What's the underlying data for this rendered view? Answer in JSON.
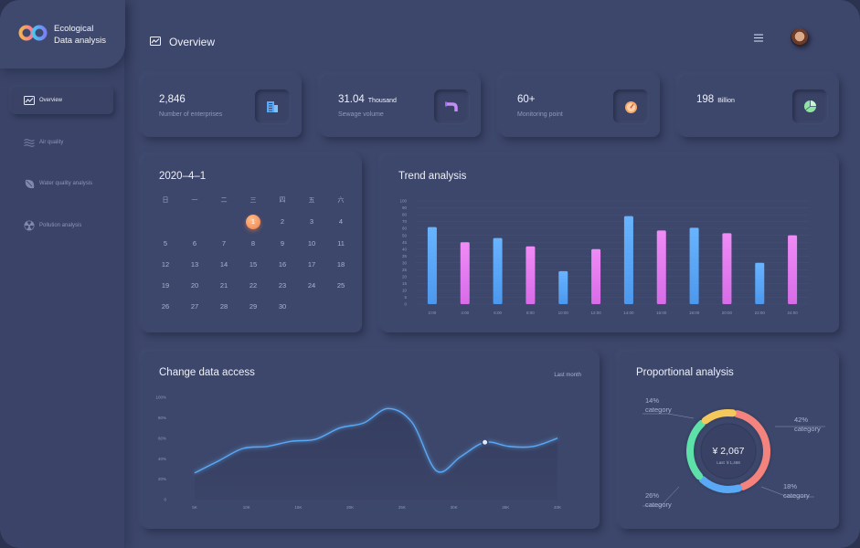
{
  "brand": {
    "line1": "Ecological",
    "line2": "Data analysis"
  },
  "header": {
    "title": "Overview"
  },
  "nav": [
    {
      "label": "Overview",
      "icon": "chart-icon",
      "active": true
    },
    {
      "label": "Air quality",
      "icon": "wind-icon",
      "active": false
    },
    {
      "label": "Water quality analysis",
      "icon": "leaf-icon",
      "active": false
    },
    {
      "label": "Pollution analysis",
      "icon": "radiation-icon",
      "active": false
    }
  ],
  "kpis": [
    {
      "value": "2,846",
      "unit": "",
      "label": "Number of enterprises",
      "icon": "building-icon"
    },
    {
      "value": "31.04",
      "unit": "Thousand",
      "label": "Sewage volume",
      "icon": "pipe-icon"
    },
    {
      "value": "60+",
      "unit": "",
      "label": "Monitoring point",
      "icon": "gauge-icon"
    },
    {
      "value": "198",
      "unit": "Billion",
      "label": "",
      "icon": "pie-icon"
    }
  ],
  "calendar": {
    "title": "2020–4–1",
    "weekdays": [
      "日",
      "一",
      "二",
      "三",
      "四",
      "五",
      "六"
    ],
    "weeks": [
      [
        "",
        "",
        "",
        "1",
        "2",
        "3",
        "4"
      ],
      [
        "5",
        "6",
        "7",
        "8",
        "9",
        "10",
        "11"
      ],
      [
        "12",
        "13",
        "14",
        "15",
        "16",
        "17",
        "18"
      ],
      [
        "19",
        "20",
        "21",
        "22",
        "23",
        "24",
        "25"
      ],
      [
        "26",
        "27",
        "28",
        "29",
        "30",
        "",
        ""
      ]
    ],
    "selected": "1"
  },
  "trend": {
    "title": "Trend analysis",
    "chart_data": {
      "type": "bar",
      "categories": [
        "2:00",
        "4:00",
        "6:00",
        "8:00",
        "10:00",
        "12:00",
        "14:00",
        "16:00",
        "18:00",
        "20:00",
        "22:00",
        "24:00"
      ],
      "values": [
        62,
        45,
        48,
        42,
        24,
        40,
        78,
        57,
        61,
        53,
        30,
        50
      ],
      "ylim": [
        0,
        100
      ],
      "yticks": [
        0,
        5,
        10,
        15,
        20,
        25,
        30,
        35,
        40,
        45,
        50,
        60,
        70,
        80,
        90,
        100
      ],
      "colors": {
        "blue": "#5aa9f7",
        "pink": "#e77ef0"
      }
    }
  },
  "access": {
    "title": "Change data access",
    "period": "Last month",
    "chart_data": {
      "type": "area",
      "x": [
        "5K",
        "10K",
        "15K",
        "20K",
        "25K",
        "30K",
        "35K",
        "40K"
      ],
      "yticks": [
        "0",
        "20%",
        "40%",
        "60%",
        "80%",
        "100%"
      ],
      "ylim": [
        0,
        100
      ],
      "points": [
        [
          0.0,
          26
        ],
        [
          0.5,
          38
        ],
        [
          1.0,
          50
        ],
        [
          1.5,
          52
        ],
        [
          2.0,
          57
        ],
        [
          2.5,
          59
        ],
        [
          3.0,
          70
        ],
        [
          3.5,
          75
        ],
        [
          4.0,
          89
        ],
        [
          4.5,
          75
        ],
        [
          5.0,
          28
        ],
        [
          5.5,
          42
        ],
        [
          6.0,
          56
        ],
        [
          6.5,
          52
        ],
        [
          7.0,
          52
        ],
        [
          7.5,
          60
        ]
      ],
      "marker_x": 6.0
    }
  },
  "proportion": {
    "title": "Proportional analysis",
    "center_value": "¥ 2,067",
    "center_sub": "Last ￥1,468",
    "chart_data": {
      "type": "pie",
      "slices": [
        {
          "label": "42% category",
          "pct": "42%",
          "name": "category",
          "value": 42,
          "color": "#f4837e"
        },
        {
          "label": "18% category",
          "pct": "18%",
          "name": "category",
          "value": 18,
          "color": "#5aa9f7"
        },
        {
          "label": "26% category",
          "pct": "26%",
          "name": "category",
          "value": 26,
          "color": "#5ee1a8"
        },
        {
          "label": "14% category",
          "pct": "14%",
          "name": "category",
          "value": 14,
          "color": "#f5c85c"
        }
      ]
    }
  }
}
